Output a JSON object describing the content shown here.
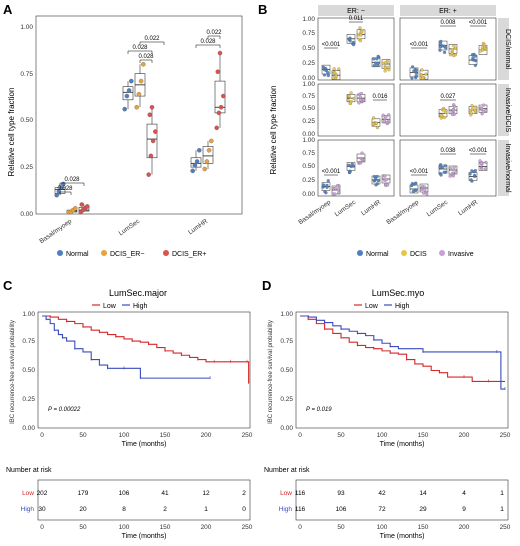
{
  "panels": {
    "A": "A",
    "B": "B",
    "C": "C",
    "D": "D"
  },
  "panel_a": {
    "ylabel": "Relative cell type fraction",
    "yticks": [
      "0.00",
      "0.25",
      "0.50",
      "0.75",
      "1.00"
    ],
    "categories": [
      "Basal/myoep",
      "LumSec",
      "LumHR"
    ],
    "legend": [
      "Normal",
      "DCIS_ER−",
      "DCIS_ER+"
    ],
    "pvals": [
      "0.028",
      "0.028",
      "0.028",
      "0.028",
      "0.022",
      "0.028",
      "0.022"
    ]
  },
  "panel_b": {
    "col_headers": [
      "ER: −",
      "ER: +"
    ],
    "row_headers": [
      "DCIS/normal",
      "Invasive/DCIS",
      "Invasive/normal"
    ],
    "ylabel": "Relative cell type fraction",
    "yticks": [
      "0.00",
      "0.25",
      "0.50",
      "0.75",
      "1.00"
    ],
    "categories": [
      "Basal/myoep",
      "LumSec",
      "LumHR"
    ],
    "legend": [
      "Normal",
      "DCIS",
      "Invasive"
    ],
    "sig_labels": {
      "r0c0": [
        "<0.001",
        "0.011"
      ],
      "r0c1": [
        "<0.001",
        "0.008",
        "<0.001"
      ],
      "r1c0": [
        "0.016"
      ],
      "r1c1": [
        "0.027"
      ],
      "r2c0": [
        "<0.001"
      ],
      "r2c1": [
        "<0.001",
        "0.038",
        "<0.001"
      ]
    }
  },
  "panel_c": {
    "title": "LumSec.major",
    "legend": [
      "Low",
      "High"
    ],
    "ylabel": "IBC recurrence-free survival probability",
    "xlabel": "Time (months)",
    "pvalue": "P = 0.00022",
    "yticks": [
      "0.00",
      "0.25",
      "0.50",
      "0.75",
      "1.00"
    ],
    "xticks": [
      "0",
      "50",
      "100",
      "150",
      "200",
      "250"
    ],
    "risk_title": "Number at risk",
    "risk_rows": [
      {
        "label": "Low",
        "values": [
          "202",
          "179",
          "106",
          "41",
          "12",
          "2"
        ]
      },
      {
        "label": "High",
        "values": [
          "30",
          "20",
          "8",
          "2",
          "1",
          "0"
        ]
      }
    ]
  },
  "panel_d": {
    "title": "LumSec.myo",
    "legend": [
      "Low",
      "High"
    ],
    "ylabel": "IBC recurrence-free survival probability",
    "xlabel": "Time (months)",
    "pvalue": "P = 0.019",
    "yticks": [
      "0.00",
      "0.25",
      "0.50",
      "0.75",
      "1.00"
    ],
    "xticks": [
      "0",
      "50",
      "100",
      "150",
      "200",
      "250"
    ],
    "risk_title": "Number at risk",
    "risk_rows": [
      {
        "label": "Low",
        "values": [
          "116",
          "93",
          "42",
          "14",
          "4",
          "1"
        ]
      },
      {
        "label": "High",
        "values": [
          "116",
          "106",
          "72",
          "29",
          "9",
          "1"
        ]
      }
    ]
  },
  "colors": {
    "normal": "#4f7fbf",
    "dcis_er_neg": "#e8a33d",
    "dcis_er_pos": "#d9534f",
    "dcis": "#e8c547",
    "invasive": "#c9a0d6",
    "km_low": "#d62728",
    "km_high": "#3a4bbf",
    "strip": "#d9d9d9"
  },
  "chart_data": [
    {
      "type": "box",
      "panel": "A",
      "categories": [
        "Basal/myoep",
        "LumSec",
        "LumHR"
      ],
      "ylabel": "Relative cell type fraction",
      "ylim": [
        0,
        1
      ],
      "series": [
        {
          "name": "Normal",
          "points": [
            [
              0.09,
              0.11,
              0.13,
              0.15
            ],
            [
              0.55,
              0.62,
              0.65,
              0.7
            ],
            [
              0.22,
              0.25,
              0.27,
              0.33
            ]
          ],
          "boxes": [
            [
              0.09,
              0.1,
              0.12,
              0.13,
              0.15
            ],
            [
              0.55,
              0.6,
              0.64,
              0.67,
              0.7
            ],
            [
              0.22,
              0.24,
              0.26,
              0.29,
              0.33
            ]
          ]
        },
        {
          "name": "DCIS_ER−",
          "points": [
            [
              0.0,
              0.0,
              0.01,
              0.02
            ],
            [
              0.56,
              0.63,
              0.7,
              0.79
            ],
            [
              0.23,
              0.27,
              0.33,
              0.38
            ]
          ],
          "boxes": [
            [
              0.0,
              0.0,
              0.005,
              0.01,
              0.02
            ],
            [
              0.56,
              0.62,
              0.68,
              0.74,
              0.79
            ],
            [
              0.23,
              0.26,
              0.3,
              0.35,
              0.38
            ]
          ]
        },
        {
          "name": "DCIS_ER+",
          "points": [
            [
              0.0,
              0.01,
              0.02,
              0.03,
              0.04
            ],
            [
              0.2,
              0.3,
              0.38,
              0.43,
              0.52,
              0.56
            ],
            [
              0.45,
              0.53,
              0.56,
              0.62,
              0.75,
              0.85
            ]
          ],
          "boxes": [
            [
              0.0,
              0.005,
              0.01,
              0.025,
              0.04
            ],
            [
              0.2,
              0.29,
              0.39,
              0.47,
              0.56
            ],
            [
              0.45,
              0.53,
              0.56,
              0.7,
              0.85
            ]
          ]
        }
      ]
    },
    {
      "type": "line",
      "panel": "C",
      "title": "LumSec.major",
      "xlabel": "Time (months)",
      "ylabel": "IBC recurrence-free survival probability",
      "xlim": [
        0,
        250
      ],
      "ylim": [
        0,
        1
      ],
      "series": [
        {
          "name": "Low",
          "x": [
            0,
            10,
            20,
            30,
            40,
            50,
            60,
            70,
            80,
            90,
            100,
            110,
            120,
            130,
            140,
            150,
            160,
            170,
            180,
            190,
            200,
            210,
            220,
            230,
            240,
            250,
            252
          ],
          "y": [
            1.0,
            0.99,
            0.97,
            0.95,
            0.93,
            0.9,
            0.87,
            0.85,
            0.83,
            0.81,
            0.79,
            0.77,
            0.76,
            0.74,
            0.71,
            0.68,
            0.66,
            0.64,
            0.62,
            0.6,
            0.58,
            0.58,
            0.58,
            0.58,
            0.58,
            0.58,
            0.38
          ]
        },
        {
          "name": "High",
          "x": [
            0,
            5,
            10,
            15,
            20,
            25,
            30,
            40,
            50,
            60,
            70,
            80,
            90,
            100,
            110,
            120,
            160,
            205
          ],
          "y": [
            1.0,
            0.97,
            0.93,
            0.87,
            0.83,
            0.8,
            0.77,
            0.7,
            0.67,
            0.6,
            0.55,
            0.52,
            0.52,
            0.52,
            0.52,
            0.43,
            0.43,
            0.43
          ]
        }
      ]
    },
    {
      "type": "line",
      "panel": "D",
      "title": "LumSec.myo",
      "xlabel": "Time (months)",
      "ylabel": "IBC recurrence-free survival probability",
      "xlim": [
        0,
        250
      ],
      "ylim": [
        0,
        1
      ],
      "series": [
        {
          "name": "Low",
          "x": [
            0,
            10,
            20,
            30,
            40,
            50,
            60,
            70,
            80,
            90,
            100,
            110,
            120,
            130,
            140,
            150,
            160,
            170,
            180,
            200,
            210,
            230,
            250
          ],
          "y": [
            1.0,
            0.97,
            0.93,
            0.88,
            0.84,
            0.8,
            0.76,
            0.73,
            0.71,
            0.7,
            0.68,
            0.66,
            0.65,
            0.6,
            0.56,
            0.54,
            0.5,
            0.48,
            0.44,
            0.44,
            0.4,
            0.4,
            0.4
          ]
        },
        {
          "name": "High",
          "x": [
            0,
            10,
            20,
            30,
            40,
            50,
            60,
            70,
            80,
            90,
            100,
            110,
            120,
            150,
            200,
            240,
            245,
            250
          ],
          "y": [
            1.0,
            0.99,
            0.96,
            0.94,
            0.91,
            0.88,
            0.86,
            0.84,
            0.82,
            0.78,
            0.75,
            0.72,
            0.7,
            0.67,
            0.67,
            0.67,
            0.33,
            0.33
          ]
        }
      ]
    }
  ]
}
